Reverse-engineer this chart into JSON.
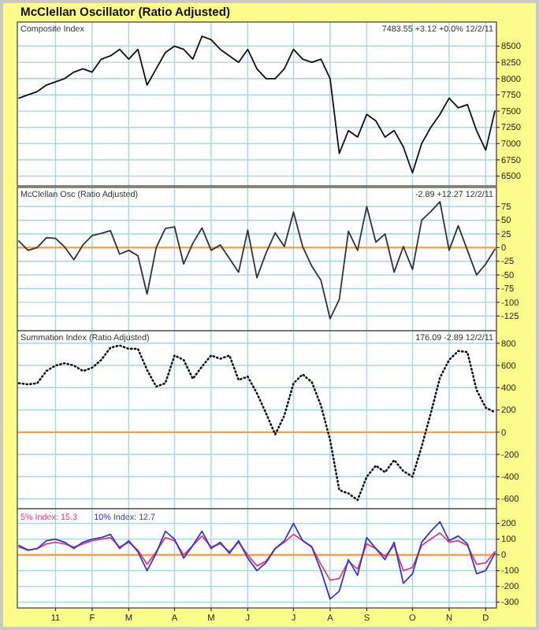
{
  "chart_data": [
    {
      "type": "line",
      "title": "McClellan Oscillator (Ratio Adjusted)",
      "subtitle": "Composite Index",
      "annotations": [
        "7483.55 +3.12 +0.0% 12/2/11"
      ],
      "ylim": [
        6350,
        8870
      ],
      "yticks": [
        6500,
        6750,
        7000,
        7250,
        7500,
        7750,
        8000,
        8250,
        8500
      ],
      "grid": true,
      "tick_labels": "y",
      "categories": [
        null,
        null,
        null,
        null,
        null,
        null,
        null,
        null,
        null,
        null,
        null,
        null,
        null,
        null,
        null,
        null,
        null,
        null,
        null,
        null,
        null,
        null,
        null,
        null,
        null,
        null,
        null,
        null,
        null,
        null,
        null,
        null,
        null,
        null,
        null,
        null,
        null,
        null,
        null,
        null,
        null,
        null,
        null,
        null,
        null,
        null,
        null,
        null,
        null,
        null,
        null,
        null,
        null
      ],
      "series": [
        {
          "color": "#111111",
          "values": [
            7700,
            7750,
            7800,
            7900,
            7950,
            8000,
            8100,
            8150,
            8100,
            8300,
            8350,
            8450,
            8300,
            8450,
            7900,
            8150,
            8400,
            8500,
            8450,
            8300,
            8650,
            8600,
            8450,
            8350,
            8250,
            8450,
            8150,
            8000,
            8000,
            8150,
            8450,
            8300,
            8250,
            8300,
            8000,
            6850,
            7200,
            7100,
            7450,
            7350,
            7100,
            7200,
            6950,
            6550,
            7000,
            7250,
            7450,
            7700,
            7550,
            7600,
            7200,
            6900,
            7500
          ]
        }
      ]
    },
    {
      "type": "line",
      "title": "McClellan Osc (Ratio Adjusted)",
      "annotations": [
        "-2.89 +12.27 12/2/11"
      ],
      "ylim": [
        -152,
        110
      ],
      "yticks": [
        -125,
        -100,
        -75,
        -50,
        -25,
        0,
        25,
        50,
        75
      ],
      "grid": true,
      "tick_labels": "y",
      "ref_lines": [
        {
          "axis": "y",
          "value": 0,
          "color": "#f0a050"
        }
      ],
      "categories": [
        null,
        null,
        null,
        null,
        null,
        null,
        null,
        null,
        null,
        null,
        null,
        null,
        null,
        null,
        null,
        null,
        null,
        null,
        null,
        null,
        null,
        null,
        null,
        null,
        null,
        null,
        null,
        null,
        null,
        null,
        null,
        null,
        null,
        null,
        null,
        null,
        null,
        null,
        null,
        null,
        null,
        null,
        null,
        null,
        null,
        null,
        null,
        null,
        null,
        null,
        null,
        null,
        null
      ],
      "series": [
        {
          "color": "#333333",
          "values": [
            12,
            -5,
            0,
            18,
            17,
            1,
            -22,
            5,
            22,
            26,
            31,
            -12,
            -5,
            -15,
            -85,
            0,
            35,
            38,
            -30,
            8,
            36,
            -5,
            5,
            -20,
            -45,
            32,
            -55,
            -10,
            27,
            2,
            65,
            2,
            -34,
            -60,
            -130,
            -95,
            30,
            -5,
            75,
            10,
            25,
            -45,
            2,
            -40,
            50,
            66,
            84,
            -5,
            40,
            -5,
            -50,
            -30,
            -3
          ]
        }
      ]
    },
    {
      "type": "line",
      "title": "Summation Index (Ratio Adjusted)",
      "annotations": [
        "176.09 -2.89 12/2/11"
      ],
      "ylim": [
        -688,
        912
      ],
      "yticks": [
        -600,
        -400,
        -200,
        0,
        200,
        400,
        600,
        800
      ],
      "grid": true,
      "tick_labels": "y",
      "line_style": "dotted",
      "ref_lines": [
        {
          "axis": "y",
          "value": 0,
          "color": "#f0a050"
        }
      ],
      "categories": [
        null,
        null,
        null,
        null,
        null,
        null,
        null,
        null,
        null,
        null,
        null,
        null,
        null,
        null,
        null,
        null,
        null,
        null,
        null,
        null,
        null,
        null,
        null,
        null,
        null,
        null,
        null,
        null,
        null,
        null,
        null,
        null,
        null,
        null,
        null,
        null,
        null,
        null,
        null,
        null,
        null,
        null,
        null,
        null,
        null,
        null,
        null,
        null,
        null,
        null,
        null,
        null,
        null
      ],
      "series": [
        {
          "color": "#111111",
          "values": [
            440,
            430,
            440,
            550,
            600,
            620,
            600,
            550,
            580,
            650,
            760,
            780,
            750,
            750,
            560,
            410,
            440,
            690,
            650,
            480,
            590,
            690,
            660,
            690,
            470,
            500,
            350,
            170,
            -20,
            150,
            440,
            520,
            450,
            240,
            -70,
            -520,
            -550,
            -610,
            -400,
            -300,
            -360,
            -250,
            -350,
            -400,
            -130,
            170,
            490,
            650,
            730,
            720,
            380,
            220,
            180
          ]
        }
      ]
    },
    {
      "type": "line",
      "ylim": [
        -337,
        293
      ],
      "yticks": [
        -300,
        -200,
        -100,
        0,
        100,
        200
      ],
      "grid": true,
      "legend": "top left",
      "ref_lines": [
        {
          "axis": "y",
          "value": 0,
          "color": "#f59a40"
        }
      ],
      "categories": [
        null,
        null,
        null,
        null,
        "11",
        null,
        null,
        null,
        "F",
        null,
        null,
        null,
        "M",
        null,
        null,
        null,
        null,
        "A",
        null,
        null,
        null,
        "M",
        null,
        null,
        null,
        "J",
        null,
        null,
        null,
        null,
        "J",
        null,
        null,
        null,
        "A",
        null,
        null,
        null,
        "S",
        null,
        null,
        null,
        null,
        "O",
        null,
        null,
        null,
        "N",
        null,
        null,
        null,
        "D",
        null
      ],
      "series": [
        {
          "name": "5% Index: 15.3",
          "color": "#e0407a",
          "values": [
            50,
            30,
            40,
            70,
            80,
            70,
            50,
            70,
            90,
            100,
            110,
            50,
            80,
            30,
            -60,
            20,
            110,
            90,
            0,
            60,
            120,
            50,
            70,
            20,
            80,
            0,
            -70,
            -40,
            40,
            80,
            130,
            90,
            50,
            -60,
            -160,
            -150,
            -40,
            -90,
            70,
            40,
            -10,
            60,
            -100,
            -80,
            60,
            100,
            140,
            80,
            90,
            60,
            -60,
            -50,
            20
          ]
        },
        {
          "name": "10% Index: 12.7",
          "color": "#3838c0",
          "values": [
            60,
            30,
            40,
            90,
            100,
            80,
            40,
            80,
            100,
            110,
            130,
            40,
            90,
            20,
            -100,
            10,
            150,
            100,
            -20,
            60,
            150,
            40,
            80,
            10,
            90,
            -20,
            -100,
            -50,
            40,
            90,
            200,
            90,
            50,
            -100,
            -280,
            -230,
            -30,
            -130,
            110,
            40,
            -30,
            80,
            -180,
            -120,
            80,
            150,
            210,
            90,
            120,
            70,
            -120,
            -100,
            10
          ]
        }
      ]
    }
  ]
}
